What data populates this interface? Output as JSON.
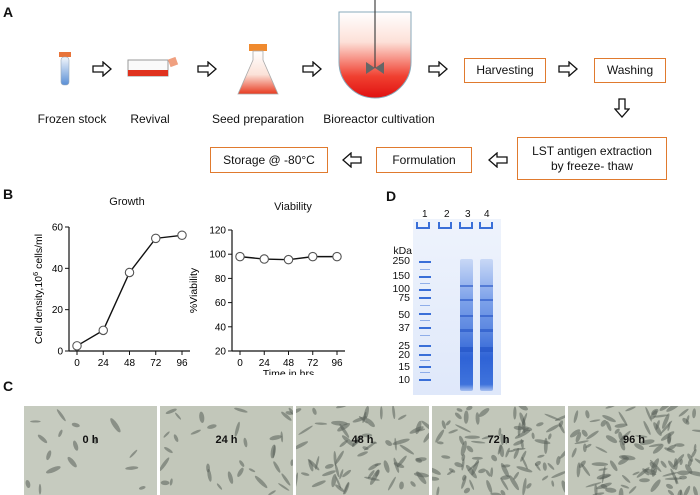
{
  "panels": {
    "a": "A",
    "b": "B",
    "c": "C",
    "d": "D"
  },
  "workflow": {
    "steps": [
      "Frozen stock",
      "Revival",
      "Seed preparation",
      "Bioreactor cultivation"
    ],
    "boxes": {
      "harvesting": "Harvesting",
      "washing": "Washing",
      "extraction_line1": "LST antigen extraction",
      "extraction_line2": "by freeze- thaw",
      "formulation": "Formulation",
      "storage": "Storage @ -80°C"
    }
  },
  "chart_data": [
    {
      "type": "line",
      "title": "Growth",
      "ylabel": "Cell density,10",
      "ylabel_sup": "6",
      "ylabel_suffix": " cells/ml",
      "xlabel": "",
      "x": [
        0,
        24,
        48,
        72,
        96
      ],
      "y": [
        2.5,
        10,
        38,
        54.5,
        56
      ],
      "xticks": [
        "0",
        "24",
        "48",
        "72",
        "96"
      ],
      "yticks": [
        "0",
        "20",
        "40",
        "60"
      ],
      "ylim": [
        0,
        60
      ]
    },
    {
      "type": "line",
      "title": "Viability",
      "ylabel": "%Viability",
      "xlabel": "Time in hrs",
      "x": [
        0,
        24,
        48,
        72,
        96
      ],
      "y": [
        98,
        96,
        95.5,
        98,
        98
      ],
      "xticks": [
        "0",
        "24",
        "48",
        "72",
        "96"
      ],
      "yticks": [
        "20",
        "40",
        "60",
        "80",
        "100",
        "120"
      ],
      "ylim": [
        20,
        120
      ]
    }
  ],
  "gel": {
    "lanes": [
      "1",
      "2",
      "3",
      "4"
    ],
    "unit": "kDa",
    "markers": [
      "250",
      "150",
      "100",
      "75",
      "50",
      "37",
      "25",
      "20",
      "15",
      "10"
    ]
  },
  "micrographs": [
    "0 h",
    "24 h",
    "48 h",
    "72 h",
    "96 h"
  ],
  "colors": {
    "accent": "#e07a2e",
    "gel_blue": "#3a6fd8",
    "reactor_red": "#e02020"
  }
}
